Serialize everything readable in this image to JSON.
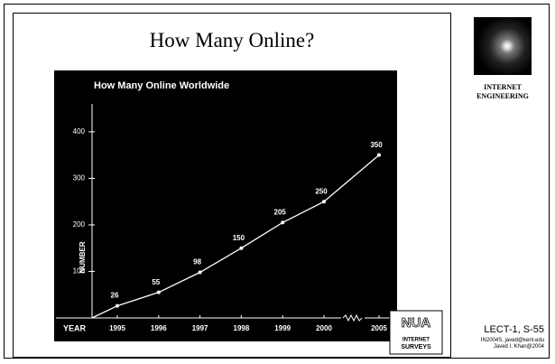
{
  "slide": {
    "title": "How Many Online?",
    "sidebar_label": "INTERNET ENGINEERING",
    "footer": {
      "slide_number": "LECT-1, S-55",
      "course": "IN2004S, javed@kent.edu",
      "author": "Javed I. Khan@2004"
    },
    "logo": {
      "name": "NUA",
      "line1": "INTERNET",
      "line2": "SURVEYS"
    }
  },
  "chart_data": {
    "type": "line",
    "title": "How Many Online Worldwide",
    "x_label": "YEAR",
    "y_label": "NUMBER",
    "categories": [
      "1995",
      "1996",
      "1997",
      "1998",
      "1999",
      "2000",
      "2005"
    ],
    "values": [
      26,
      55,
      98,
      150,
      205,
      250,
      350
    ],
    "color": "#ffffff",
    "ylim": [
      0,
      460
    ],
    "yticks": [
      100,
      200,
      300,
      400
    ]
  }
}
